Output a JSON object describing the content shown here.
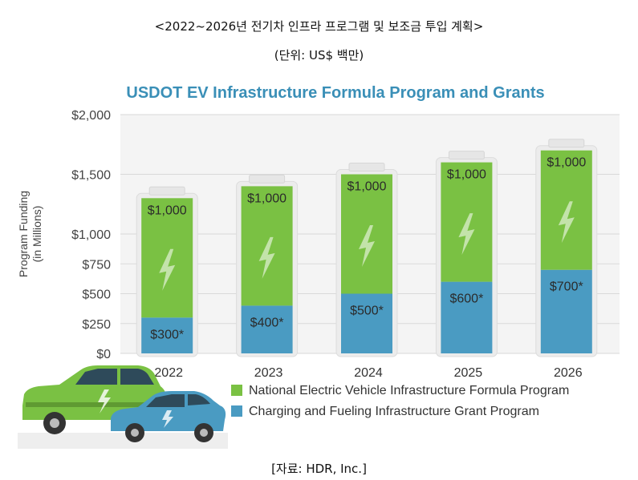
{
  "header": {
    "title": "<2022~2026년 전기차 인프라 프로그램 및 보조금 투입 계획>",
    "unit": "(단위: US$ 백만)"
  },
  "source": "[자료: HDR, Inc.]",
  "colors": {
    "green": "#7ac143",
    "blue": "#4a9bc2",
    "title": "#3a8fb7",
    "axis_text": "#444444",
    "grid": "#d9d9d9"
  },
  "chart_data": {
    "type": "bar",
    "stacked": true,
    "title": "USDOT EV Infrastructure Formula Program and Grants",
    "ylabel": "Program Funding (in Millions)",
    "ylabel_lines": [
      "Program Funding",
      "(in Millions)"
    ],
    "xlabel": "",
    "categories": [
      "2022",
      "2023",
      "2024",
      "2025",
      "2026"
    ],
    "ylim": [
      0,
      2000
    ],
    "yticks": [
      0,
      250,
      500,
      750,
      1000,
      1500,
      2000
    ],
    "ytick_labels": [
      "$0",
      "$250",
      "$500",
      "$750",
      "$1,000",
      "$1,500",
      "$2,000"
    ],
    "grid": true,
    "legend_position": "bottom-right",
    "series": [
      {
        "name": "Charging and Fueling Infrastructure Grant Program",
        "color": "#4a9bc2",
        "values": [
          300,
          400,
          500,
          600,
          700
        ],
        "labels": [
          "$300*",
          "$400*",
          "$500*",
          "$600*",
          "$700*"
        ]
      },
      {
        "name": "National Electric Vehicle Infrastructure Formula Program",
        "color": "#7ac143",
        "values": [
          1000,
          1000,
          1000,
          1000,
          1000
        ],
        "labels": [
          "$1,000",
          "$1,000",
          "$1,000",
          "$1,000",
          "$1,000"
        ]
      }
    ],
    "legend_order": [
      1,
      0
    ]
  }
}
